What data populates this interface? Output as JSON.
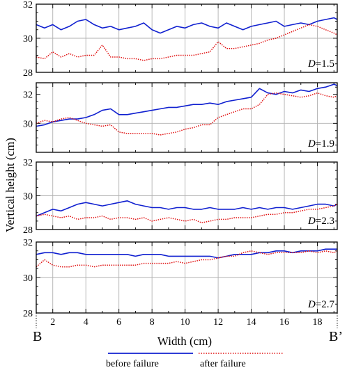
{
  "figure": {
    "ylabel": "Vertical height (cm)",
    "xlabel": "Width (cm)",
    "left_marker": "B",
    "right_marker": "B’",
    "legend": [
      "before failure",
      "after failure"
    ]
  },
  "colors": {
    "before": "#1020d0",
    "after": "#e01010",
    "grid": "#b0b0b0"
  },
  "chart_data": [
    {
      "type": "line",
      "label_prefix": "D",
      "label_value": "=1.5",
      "xlim": [
        1,
        19.2
      ],
      "ylim": [
        28,
        32
      ],
      "yticks": [
        "28",
        "30",
        "32"
      ],
      "x": [
        1,
        1.5,
        2,
        2.5,
        3,
        3.5,
        4,
        4.5,
        5,
        5.5,
        6,
        6.5,
        7,
        7.5,
        8,
        8.5,
        9,
        9.5,
        10,
        10.5,
        11,
        11.5,
        12,
        12.5,
        13,
        13.5,
        14,
        14.5,
        15,
        15.5,
        16,
        16.5,
        17,
        17.5,
        18,
        18.5,
        19,
        19.2
      ],
      "series": [
        {
          "name": "before failure",
          "values": [
            30.8,
            30.6,
            30.8,
            30.5,
            30.7,
            31.0,
            31.1,
            30.8,
            30.6,
            30.7,
            30.5,
            30.6,
            30.7,
            30.9,
            30.5,
            30.3,
            30.5,
            30.7,
            30.6,
            30.8,
            30.9,
            30.7,
            30.6,
            30.9,
            30.7,
            30.5,
            30.7,
            30.8,
            30.9,
            31.0,
            30.7,
            30.8,
            30.9,
            30.8,
            31.0,
            31.1,
            31.2,
            31.1
          ]
        },
        {
          "name": "after failure",
          "values": [
            28.9,
            28.8,
            29.2,
            28.9,
            29.1,
            28.9,
            29.0,
            29.0,
            29.6,
            28.9,
            28.9,
            28.8,
            28.8,
            28.7,
            28.8,
            28.8,
            28.9,
            29.0,
            29.0,
            29.0,
            29.1,
            29.2,
            29.8,
            29.4,
            29.4,
            29.5,
            29.6,
            29.7,
            29.9,
            30.0,
            30.2,
            30.4,
            30.6,
            30.8,
            30.7,
            30.5,
            30.3,
            30.2
          ]
        }
      ]
    },
    {
      "type": "line",
      "label_prefix": "D",
      "label_value": "=1.9",
      "xlim": [
        1,
        19.2
      ],
      "ylim": [
        28,
        32.8
      ],
      "yticks": [
        "30",
        "32"
      ],
      "x": [
        1,
        1.5,
        2,
        2.5,
        3,
        3.5,
        4,
        4.5,
        5,
        5.5,
        6,
        6.5,
        7,
        7.5,
        8,
        8.5,
        9,
        9.5,
        10,
        10.5,
        11,
        11.5,
        12,
        12.5,
        13,
        13.5,
        14,
        14.5,
        15,
        15.5,
        16,
        16.5,
        17,
        17.5,
        18,
        18.5,
        19,
        19.2
      ],
      "series": [
        {
          "name": "before failure",
          "values": [
            29.8,
            29.9,
            30.1,
            30.2,
            30.3,
            30.3,
            30.4,
            30.6,
            30.9,
            31.0,
            30.6,
            30.6,
            30.7,
            30.8,
            30.9,
            31.0,
            31.1,
            31.1,
            31.2,
            31.3,
            31.3,
            31.4,
            31.3,
            31.5,
            31.6,
            31.7,
            31.8,
            32.4,
            32.1,
            32.0,
            32.2,
            32.1,
            32.3,
            32.2,
            32.4,
            32.5,
            32.7,
            32.6
          ]
        },
        {
          "name": "after failure",
          "values": [
            30.0,
            30.2,
            30.1,
            30.3,
            30.4,
            30.2,
            30.0,
            29.9,
            29.8,
            29.9,
            29.4,
            29.3,
            29.3,
            29.3,
            29.3,
            29.2,
            29.3,
            29.4,
            29.6,
            29.7,
            29.9,
            29.9,
            30.4,
            30.6,
            30.8,
            31.0,
            31.0,
            31.3,
            32.0,
            32.1,
            32.0,
            31.9,
            31.8,
            31.9,
            32.1,
            31.9,
            31.8,
            31.9
          ]
        }
      ]
    },
    {
      "type": "line",
      "label_prefix": "D",
      "label_value": "=2.3",
      "xlim": [
        1,
        19.2
      ],
      "ylim": [
        28,
        32
      ],
      "yticks": [
        "28",
        "30",
        "32"
      ],
      "x": [
        1,
        1.5,
        2,
        2.5,
        3,
        3.5,
        4,
        4.5,
        5,
        5.5,
        6,
        6.5,
        7,
        7.5,
        8,
        8.5,
        9,
        9.5,
        10,
        10.5,
        11,
        11.5,
        12,
        12.5,
        13,
        13.5,
        14,
        14.5,
        15,
        15.5,
        16,
        16.5,
        17,
        17.5,
        18,
        18.5,
        19,
        19.2
      ],
      "series": [
        {
          "name": "before failure",
          "values": [
            28.8,
            29.0,
            29.2,
            29.1,
            29.3,
            29.5,
            29.6,
            29.5,
            29.4,
            29.5,
            29.6,
            29.7,
            29.5,
            29.4,
            29.3,
            29.3,
            29.2,
            29.3,
            29.3,
            29.2,
            29.2,
            29.3,
            29.2,
            29.2,
            29.2,
            29.3,
            29.2,
            29.3,
            29.2,
            29.3,
            29.3,
            29.2,
            29.3,
            29.4,
            29.5,
            29.5,
            29.4,
            29.5
          ]
        },
        {
          "name": "after failure",
          "values": [
            28.8,
            28.9,
            28.8,
            28.7,
            28.8,
            28.6,
            28.7,
            28.7,
            28.8,
            28.6,
            28.7,
            28.7,
            28.6,
            28.7,
            28.5,
            28.6,
            28.7,
            28.6,
            28.5,
            28.6,
            28.4,
            28.5,
            28.6,
            28.6,
            28.7,
            28.7,
            28.7,
            28.8,
            28.9,
            28.9,
            29.0,
            29.0,
            29.1,
            29.2,
            29.2,
            29.3,
            29.4,
            29.5
          ]
        }
      ]
    },
    {
      "type": "line",
      "label_prefix": "D",
      "label_value": "=2.7",
      "xlim": [
        1,
        19.2
      ],
      "ylim": [
        28,
        32
      ],
      "yticks": [
        "28",
        "30",
        "32"
      ],
      "xticks": [
        "2",
        "4",
        "6",
        "8",
        "10",
        "12",
        "14",
        "16",
        "18"
      ],
      "x": [
        1,
        1.5,
        2,
        2.5,
        3,
        3.5,
        4,
        4.5,
        5,
        5.5,
        6,
        6.5,
        7,
        7.5,
        8,
        8.5,
        9,
        9.5,
        10,
        10.5,
        11,
        11.5,
        12,
        12.5,
        13,
        13.5,
        14,
        14.5,
        15,
        15.5,
        16,
        16.5,
        17,
        17.5,
        18,
        18.5,
        19,
        19.2
      ],
      "series": [
        {
          "name": "before failure",
          "values": [
            31.3,
            31.4,
            31.4,
            31.3,
            31.4,
            31.4,
            31.3,
            31.3,
            31.3,
            31.3,
            31.3,
            31.3,
            31.2,
            31.3,
            31.3,
            31.3,
            31.2,
            31.2,
            31.2,
            31.2,
            31.2,
            31.2,
            31.1,
            31.2,
            31.3,
            31.3,
            31.3,
            31.4,
            31.4,
            31.5,
            31.5,
            31.4,
            31.5,
            31.5,
            31.5,
            31.6,
            31.6,
            31.6
          ]
        },
        {
          "name": "after failure",
          "values": [
            30.6,
            31.0,
            30.7,
            30.6,
            30.6,
            30.7,
            30.7,
            30.6,
            30.7,
            30.7,
            30.7,
            30.7,
            30.7,
            30.8,
            30.8,
            30.8,
            30.8,
            30.9,
            30.8,
            30.9,
            31.0,
            31.0,
            31.1,
            31.2,
            31.2,
            31.4,
            31.5,
            31.4,
            31.3,
            31.4,
            31.4,
            31.4,
            31.4,
            31.5,
            31.4,
            31.5,
            31.4,
            31.5
          ]
        }
      ]
    }
  ]
}
